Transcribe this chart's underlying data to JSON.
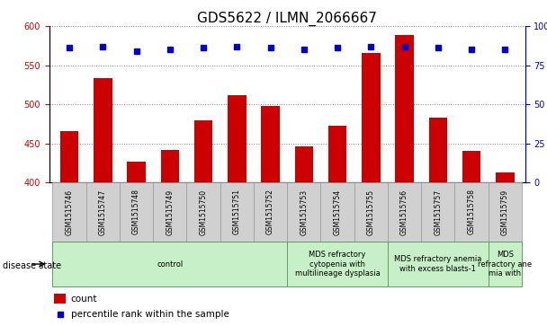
{
  "title": "GDS5622 / ILMN_2066667",
  "samples": [
    "GSM1515746",
    "GSM1515747",
    "GSM1515748",
    "GSM1515749",
    "GSM1515750",
    "GSM1515751",
    "GSM1515752",
    "GSM1515753",
    "GSM1515754",
    "GSM1515755",
    "GSM1515756",
    "GSM1515757",
    "GSM1515758",
    "GSM1515759"
  ],
  "counts": [
    466,
    533,
    427,
    442,
    479,
    512,
    498,
    446,
    473,
    566,
    588,
    483,
    441,
    413
  ],
  "percentile_ranks": [
    86,
    87,
    84,
    85,
    86,
    87,
    86,
    85,
    86,
    87,
    87,
    86,
    85,
    85
  ],
  "bar_color": "#cc0000",
  "dot_color": "#0000cc",
  "ylim_left": [
    400,
    600
  ],
  "ylim_right": [
    0,
    100
  ],
  "yticks_left": [
    400,
    450,
    500,
    550,
    600
  ],
  "yticks_right": [
    0,
    25,
    50,
    75,
    100
  ],
  "groups": [
    {
      "label": "control",
      "start": 0,
      "end": 7
    },
    {
      "label": "MDS refractory\ncytopenia with\nmultilineage dysplasia",
      "start": 7,
      "end": 10
    },
    {
      "label": "MDS refractory anemia\nwith excess blasts-1",
      "start": 10,
      "end": 13
    },
    {
      "label": "MDS\nrefractory ane\nmia with",
      "start": 13,
      "end": 14
    }
  ],
  "group_color": "#c8f0c8",
  "group_border": "#669966",
  "sample_box_color": "#d0d0d0",
  "sample_box_border": "#999999",
  "disease_state_label": "disease state",
  "legend_count_label": "count",
  "legend_percentile_label": "percentile rank within the sample",
  "title_fontsize": 11,
  "tick_fontsize": 7,
  "label_fontsize": 7.5
}
